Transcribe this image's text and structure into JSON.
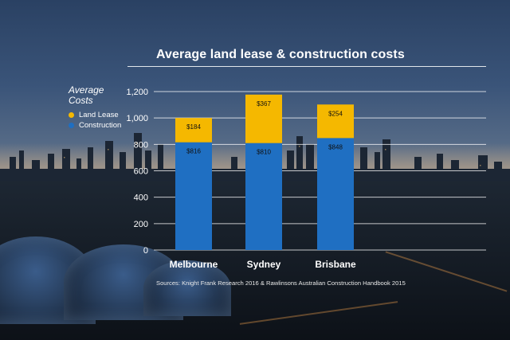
{
  "chart_data": {
    "type": "bar",
    "stacked": true,
    "title": "Average land lease & construction costs",
    "legend_title": "Average Costs",
    "legend_position": "left",
    "categories": [
      "Melbourne",
      "Sydney",
      "Brisbane"
    ],
    "series": [
      {
        "name": "Construction",
        "color": "#1f6fc2",
        "values": [
          816,
          810,
          848
        ],
        "labels": [
          "$816",
          "$810",
          "$848"
        ]
      },
      {
        "name": "Land Lease",
        "color": "#f5b800",
        "values": [
          184,
          367,
          254
        ],
        "labels": [
          "$184",
          "$367",
          "$254"
        ]
      }
    ],
    "ylim": [
      0,
      1200
    ],
    "yticks": [
      "0",
      "200",
      "400",
      "600",
      "800",
      "1,000",
      "1,200"
    ],
    "ytick_values": [
      0,
      200,
      400,
      600,
      800,
      1000,
      1200
    ],
    "grid": true,
    "source": "Sources: Knight Frank Research 2016 & Rawlinsons Australian Construction Handbook 2015"
  },
  "legend": {
    "title_line1": "Average",
    "title_line2": "Costs",
    "items": [
      {
        "label": "Land Lease",
        "color": "#f5b800"
      },
      {
        "label": "Construction",
        "color": "#1f6fc2"
      }
    ]
  }
}
